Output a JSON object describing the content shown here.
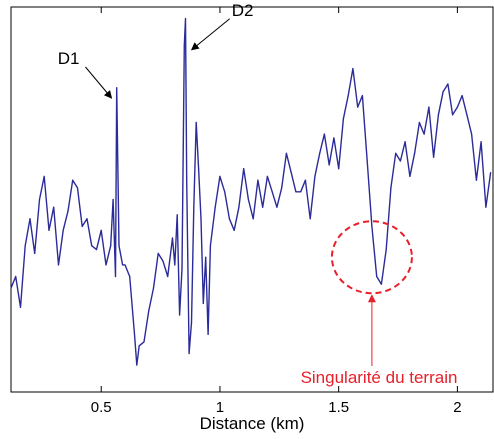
{
  "chart_data": {
    "type": "line",
    "xlabel": "Distance (km)",
    "ylabel": "",
    "title": "",
    "xlim": [
      0.12,
      2.15
    ],
    "ylim": [
      0,
      1
    ],
    "xticks": [
      {
        "value": 0.5,
        "label": "0.5"
      },
      {
        "value": 1,
        "label": "1"
      },
      {
        "value": 1.5,
        "label": "1.5"
      },
      {
        "value": 2,
        "label": "2"
      }
    ],
    "yticks": [],
    "grid": false,
    "series": [
      {
        "color": "#2b2b9a",
        "x": [
          0.12,
          0.14,
          0.16,
          0.18,
          0.2,
          0.22,
          0.24,
          0.26,
          0.28,
          0.3,
          0.32,
          0.34,
          0.36,
          0.38,
          0.4,
          0.42,
          0.44,
          0.46,
          0.48,
          0.5,
          0.52,
          0.54,
          0.55,
          0.56,
          0.565,
          0.575,
          0.59,
          0.6,
          0.62,
          0.64,
          0.65,
          0.66,
          0.68,
          0.7,
          0.72,
          0.74,
          0.76,
          0.78,
          0.8,
          0.81,
          0.82,
          0.83,
          0.84,
          0.85,
          0.855,
          0.86,
          0.87,
          0.88,
          0.89,
          0.9,
          0.91,
          0.92,
          0.93,
          0.94,
          0.95,
          0.96,
          0.98,
          1.0,
          1.02,
          1.04,
          1.06,
          1.08,
          1.1,
          1.12,
          1.14,
          1.16,
          1.18,
          1.2,
          1.22,
          1.24,
          1.26,
          1.28,
          1.3,
          1.32,
          1.34,
          1.36,
          1.38,
          1.4,
          1.42,
          1.44,
          1.46,
          1.48,
          1.5,
          1.52,
          1.54,
          1.56,
          1.58,
          1.6,
          1.62,
          1.64,
          1.66,
          1.68,
          1.7,
          1.72,
          1.74,
          1.76,
          1.78,
          1.8,
          1.82,
          1.84,
          1.86,
          1.88,
          1.9,
          1.92,
          1.94,
          1.96,
          1.98,
          2.0,
          2.02,
          2.04,
          2.06,
          2.08,
          2.1,
          2.12,
          2.14
        ],
        "y": [
          0.27,
          0.3,
          0.22,
          0.38,
          0.45,
          0.36,
          0.5,
          0.56,
          0.42,
          0.48,
          0.33,
          0.42,
          0.47,
          0.55,
          0.53,
          0.43,
          0.45,
          0.38,
          0.37,
          0.42,
          0.33,
          0.38,
          0.5,
          0.3,
          0.79,
          0.38,
          0.33,
          0.33,
          0.3,
          0.15,
          0.07,
          0.12,
          0.13,
          0.21,
          0.27,
          0.36,
          0.34,
          0.3,
          0.4,
          0.33,
          0.46,
          0.2,
          0.32,
          0.9,
          0.97,
          0.55,
          0.1,
          0.18,
          0.48,
          0.7,
          0.58,
          0.45,
          0.23,
          0.35,
          0.15,
          0.38,
          0.48,
          0.56,
          0.52,
          0.45,
          0.42,
          0.48,
          0.58,
          0.5,
          0.45,
          0.55,
          0.48,
          0.56,
          0.52,
          0.48,
          0.53,
          0.62,
          0.57,
          0.52,
          0.52,
          0.55,
          0.45,
          0.56,
          0.62,
          0.67,
          0.59,
          0.66,
          0.58,
          0.71,
          0.77,
          0.84,
          0.74,
          0.77,
          0.6,
          0.43,
          0.3,
          0.28,
          0.37,
          0.53,
          0.62,
          0.6,
          0.65,
          0.56,
          0.62,
          0.7,
          0.67,
          0.74,
          0.61,
          0.72,
          0.78,
          0.8,
          0.72,
          0.74,
          0.77,
          0.72,
          0.67,
          0.55,
          0.65,
          0.48,
          0.57
        ]
      }
    ],
    "annotations": [
      {
        "text": "D1",
        "target_x": 0.56,
        "target_y": 0.8
      },
      {
        "text": "D2",
        "target_x": 0.86,
        "target_y": 0.92
      }
    ],
    "highlight": {
      "label": "Singularité du terrain",
      "center_x": 1.64,
      "center_y": 0.35,
      "color": "#e8202a"
    }
  }
}
